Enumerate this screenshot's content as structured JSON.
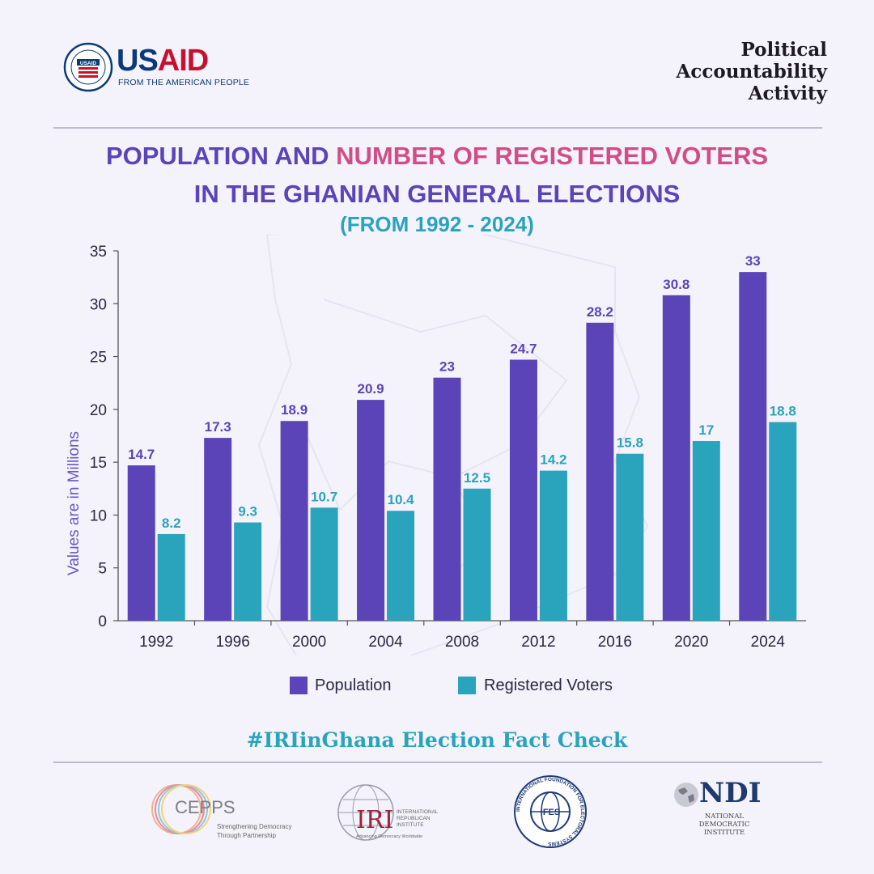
{
  "header": {
    "logo_text_us": "US",
    "logo_text_aid": "AID",
    "logo_tagline": "FROM THE AMERICAN PEOPLE",
    "logo_seal_text": "USAID",
    "activity_title_1": "Political",
    "activity_title_2": "Accountability",
    "activity_title_3": "Activity"
  },
  "title": {
    "part1": "POPULATION AND ",
    "part2": "NUMBER OF REGISTERED VOTERS",
    "line2": "IN THE GHANIAN GENERAL ELECTIONS",
    "line3": "(FROM 1992 - 2024)"
  },
  "chart_data": {
    "type": "bar",
    "ylabel": "Values are in Millions",
    "xlabel": "",
    "ylim": [
      0,
      35
    ],
    "yticks": [
      0,
      5,
      10,
      15,
      20,
      25,
      30,
      35
    ],
    "categories": [
      "1992",
      "1996",
      "2000",
      "2004",
      "2008",
      "2012",
      "2016",
      "2020",
      "2024"
    ],
    "series": [
      {
        "name": "Population",
        "color": "#5a44b7",
        "values": [
          14.7,
          17.3,
          18.9,
          20.9,
          23,
          24.7,
          28.2,
          30.8,
          33
        ]
      },
      {
        "name": "Registered Voters",
        "color": "#2aa3bd",
        "values": [
          8.2,
          9.3,
          10.7,
          10.4,
          12.5,
          14.2,
          15.8,
          17,
          18.8
        ]
      }
    ],
    "legend": "bottom"
  },
  "legend": {
    "population": "Population",
    "voters": "Registered Voters",
    "population_color": "#5a44b7",
    "voters_color": "#2aa3bd"
  },
  "footer": {
    "hashtag": "#IRIinGhana Election Fact Check",
    "cepps_name": "CEPPS",
    "cepps_sub1": "Strengthening Democracy",
    "cepps_sub2": "Through Partnership",
    "iri_name": "IRI",
    "iri_sub1": "INTERNATIONAL",
    "iri_sub2": "REPUBLICAN",
    "iri_sub3": "INSTITUTE",
    "iri_sub4": "Advancing Democracy Worldwide",
    "ifes_name": "IFES",
    "ifes_ring": "INTERNATIONAL FOUNDATION FOR ELECTORAL SYSTEMS",
    "ndi_name": "NDI",
    "ndi_sub1": "NATIONAL",
    "ndi_sub2": "DEMOCRATIC",
    "ndi_sub3": "INSTITUTE"
  }
}
